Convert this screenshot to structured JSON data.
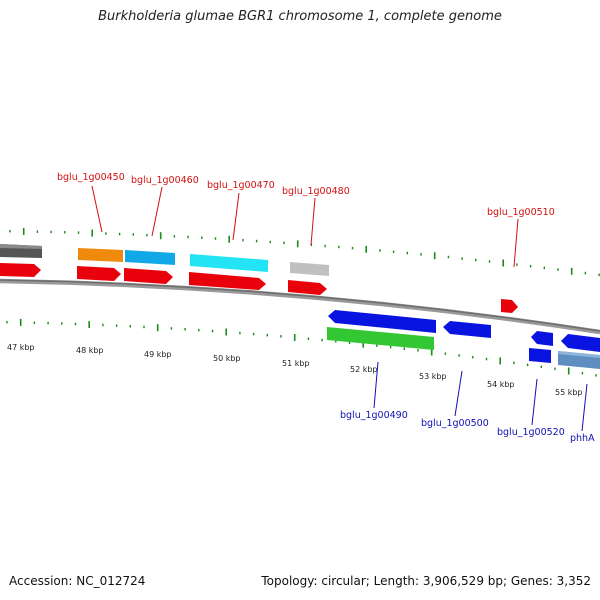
{
  "header": {
    "title": "Burkholderia glumae BGR1 chromosome 1, complete genome"
  },
  "footer": {
    "accession": "Accession: NC_012724",
    "summary": "Topology: circular; Length: 3,906,529 bp; Genes: 3,352"
  },
  "colors": {
    "forward_cds": "#e8000b",
    "reverse_cds": "#0a14e0",
    "forward_label": "#d21010",
    "reverse_label": "#1010b4",
    "tick": "#1a8a1a",
    "backbone": "#777777"
  },
  "ruler": {
    "labels": [
      "47 kbp",
      "48 kbp",
      "49 kbp",
      "50 kbp",
      "51 kbp",
      "52 kbp",
      "53 kbp",
      "54 kbp",
      "55 kbp"
    ]
  },
  "genes_forward": [
    {
      "label": "bglu_1g00450"
    },
    {
      "label": "bglu_1g00460"
    },
    {
      "label": "bglu_1g00470"
    },
    {
      "label": "bglu_1g00480"
    },
    {
      "label": "bglu_1g00510"
    }
  ],
  "genes_reverse": [
    {
      "label": "bglu_1g00490"
    },
    {
      "label": "bglu_1g00500"
    },
    {
      "label": "bglu_1g00520"
    },
    {
      "label": "phhA"
    }
  ]
}
